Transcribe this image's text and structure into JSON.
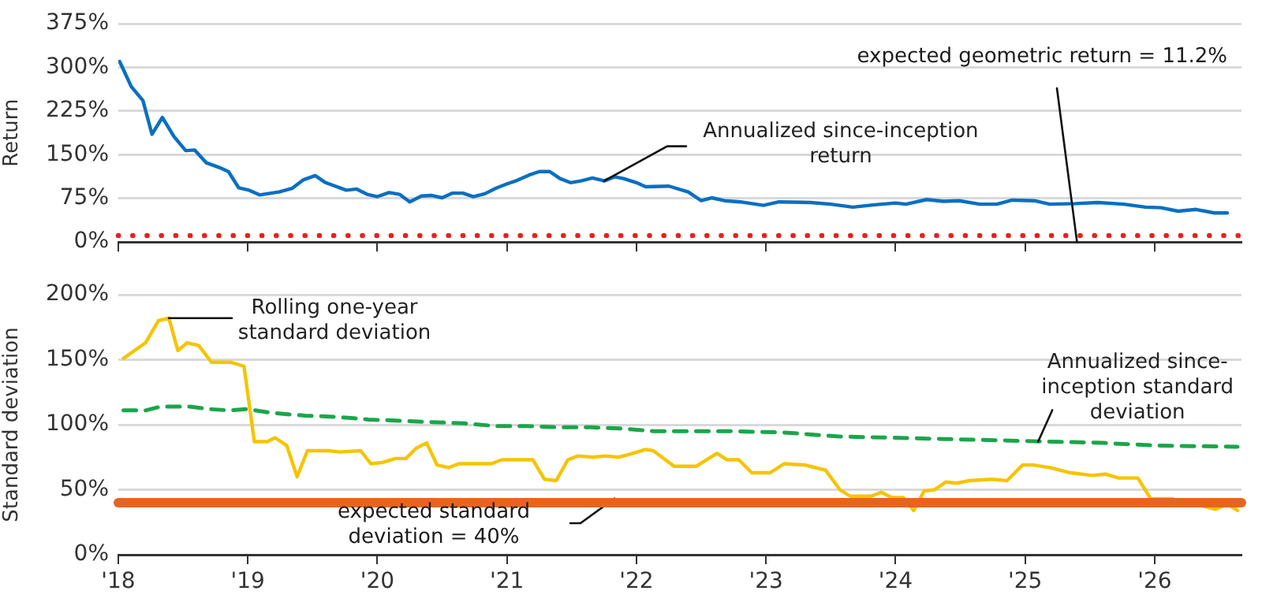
{
  "chart_data": [
    {
      "type": "line",
      "ylabel": "Return",
      "xlim": [
        2018,
        2026.67
      ],
      "xticks": [
        {
          "value": 2018,
          "label": null
        },
        {
          "value": 2019,
          "label": null
        },
        {
          "value": 2020,
          "label": null
        },
        {
          "value": 2021,
          "label": null
        },
        {
          "value": 2022,
          "label": null
        },
        {
          "value": 2023,
          "label": null
        },
        {
          "value": 2024,
          "label": null
        },
        {
          "value": 2025,
          "label": null
        },
        {
          "value": 2026,
          "label": null
        }
      ],
      "ylim": [
        0,
        375
      ],
      "yticks": [
        {
          "value": 0,
          "label": "0%"
        },
        {
          "value": 75,
          "label": "75%"
        },
        {
          "value": 150,
          "label": "150%"
        },
        {
          "value": 225,
          "label": "225%"
        },
        {
          "value": 300,
          "label": "300%"
        },
        {
          "value": 375,
          "label": "375%"
        }
      ],
      "tick_labels": "y",
      "grid": "y",
      "legend": false,
      "marker": "none",
      "series": [
        {
          "color": "#0a6fc2",
          "line_style": "solid",
          "x": [
            2018.01,
            2018.1,
            2018.19,
            2018.26,
            2018.34,
            2018.43,
            2018.52,
            2018.59,
            2018.68,
            2018.78,
            2018.85,
            2018.93,
            2019.01,
            2019.09,
            2019.24,
            2019.34,
            2019.43,
            2019.52,
            2019.6,
            2019.76,
            2019.84,
            2019.92,
            2020.0,
            2020.09,
            2020.17,
            2020.25,
            2020.34,
            2020.42,
            2020.5,
            2020.58,
            2020.66,
            2020.74,
            2020.83,
            2020.91,
            2020.99,
            2021.08,
            2021.17,
            2021.25,
            2021.33,
            2021.41,
            2021.49,
            2021.57,
            2021.66,
            2021.75,
            2021.83,
            2021.9,
            2022.0,
            2022.07,
            2022.25,
            2022.4,
            2022.5,
            2022.58,
            2022.68,
            2022.8,
            2022.98,
            2023.1,
            2023.34,
            2023.5,
            2023.67,
            2023.84,
            2024.0,
            2024.08,
            2024.24,
            2024.37,
            2024.49,
            2024.65,
            2024.78,
            2024.9,
            2025.07,
            2025.19,
            2025.39,
            2025.56,
            2025.76,
            2025.93,
            2026.05,
            2026.18,
            2026.32,
            2026.46,
            2026.56
          ],
          "values": [
            310,
            267,
            243,
            185,
            214,
            181,
            157,
            158,
            136,
            128,
            121,
            93,
            89,
            81,
            86,
            92,
            107,
            114,
            102,
            89,
            91,
            82,
            78,
            85,
            82,
            69,
            79,
            80,
            76,
            84,
            84,
            78,
            83,
            92,
            99,
            106,
            115,
            121,
            121,
            109,
            102,
            105,
            110,
            105,
            112,
            109,
            102,
            95,
            96,
            86,
            71,
            76,
            71,
            69,
            63,
            69,
            68,
            65,
            60,
            64,
            67,
            65,
            73,
            70,
            71,
            65,
            65,
            72,
            71,
            65,
            66,
            68,
            65,
            60,
            59,
            53,
            56,
            50,
            50
          ]
        }
      ],
      "ref_lines": [
        {
          "axis": "y",
          "value": 11.2,
          "label": "expected geometric return = 11.2%",
          "color": "#e8201e",
          "line_style": "dotted"
        }
      ],
      "annotations": [
        {
          "text": "Annualized since-inception return",
          "x": 2021.75,
          "y": 105
        }
      ]
    },
    {
      "type": "line",
      "ylabel": "Standard deviation",
      "xlim": [
        2018,
        2026.67
      ],
      "xticks": [
        {
          "value": 2018,
          "label": "'18"
        },
        {
          "value": 2019,
          "label": "'19"
        },
        {
          "value": 2020,
          "label": "'20"
        },
        {
          "value": 2021,
          "label": "'21"
        },
        {
          "value": 2022,
          "label": "'22"
        },
        {
          "value": 2023,
          "label": "'23"
        },
        {
          "value": 2024,
          "label": "'24"
        },
        {
          "value": 2025,
          "label": "'25"
        },
        {
          "value": 2026,
          "label": "'26"
        }
      ],
      "ylim": [
        0,
        200
      ],
      "yticks": [
        {
          "value": 0,
          "label": "0%"
        },
        {
          "value": 50,
          "label": "50%"
        },
        {
          "value": 100,
          "label": "100%"
        },
        {
          "value": 150,
          "label": "150%"
        },
        {
          "value": 200,
          "label": "200%"
        }
      ],
      "grid": "y",
      "legend": false,
      "marker": "none",
      "series": [
        {
          "color": "#f5c400",
          "line_style": "solid",
          "x": [
            2018.04,
            2018.21,
            2018.31,
            2018.39,
            2018.46,
            2018.53,
            2018.62,
            2018.72,
            2018.87,
            2018.97,
            2019.05,
            2019.15,
            2019.21,
            2019.3,
            2019.38,
            2019.46,
            2019.54,
            2019.62,
            2019.71,
            2019.87,
            2019.95,
            2020.04,
            2020.14,
            2020.22,
            2020.3,
            2020.38,
            2020.46,
            2020.55,
            2020.63,
            2020.88,
            2020.96,
            2021.2,
            2021.29,
            2021.38,
            2021.47,
            2021.55,
            2021.66,
            2021.76,
            2021.86,
            2021.94,
            2022.07,
            2022.13,
            2022.29,
            2022.46,
            2022.62,
            2022.7,
            2022.79,
            2022.89,
            2023.03,
            2023.14,
            2023.3,
            2023.46,
            2023.57,
            2023.65,
            2023.81,
            2023.89,
            2023.97,
            2024.06,
            2024.14,
            2024.22,
            2024.3,
            2024.39,
            2024.47,
            2024.57,
            2024.74,
            2024.86,
            2024.98,
            2025.06,
            2025.19,
            2025.35,
            2025.52,
            2025.62,
            2025.72,
            2025.87,
            2025.97,
            2026.14,
            2026.22,
            2026.35,
            2026.47,
            2026.56,
            2026.64
          ],
          "values": [
            151,
            163,
            180,
            182,
            157,
            163,
            161,
            148,
            148,
            145,
            87,
            87,
            90,
            84,
            60,
            80,
            80,
            80,
            79,
            80,
            70,
            71,
            74,
            74,
            82,
            86,
            69,
            67,
            70,
            70,
            73,
            73,
            58,
            57,
            73,
            76,
            75,
            76,
            75,
            77,
            81,
            80,
            68,
            68,
            78,
            73,
            73,
            63,
            63,
            70,
            69,
            65,
            50,
            45,
            45,
            48,
            44,
            44,
            34,
            49,
            50,
            56,
            55,
            57,
            58,
            57,
            69,
            69,
            67,
            63,
            61,
            62,
            59,
            59,
            43,
            43,
            38,
            38,
            35,
            39,
            34
          ]
        },
        {
          "color": "#1aa64a",
          "line_style": "dashed",
          "x": [
            2018.04,
            2018.21,
            2018.33,
            2018.55,
            2018.7,
            2018.86,
            2018.99,
            2019.19,
            2019.44,
            2019.69,
            2019.93,
            2020.18,
            2020.42,
            2020.67,
            2020.91,
            2021.16,
            2021.4,
            2021.65,
            2021.9,
            2022.13,
            2022.72,
            2023.14,
            2023.55,
            2023.97,
            2024.38,
            2024.78,
            2025.19,
            2025.6,
            2026.01,
            2026.64
          ],
          "values": [
            111,
            111,
            114,
            114,
            112,
            111,
            112,
            109,
            107,
            106,
            104,
            103,
            102,
            101,
            99,
            99,
            98,
            98,
            97,
            95,
            95,
            94,
            91,
            90,
            89,
            88,
            87,
            86,
            84,
            83
          ]
        }
      ],
      "ref_lines": [
        {
          "axis": "y",
          "value": 40,
          "label": "expected standard deviation = 40%",
          "color": "#e8641e",
          "line_style": "solid"
        }
      ],
      "annotations": [
        {
          "text": "Rolling one-year standard deviation",
          "x": 2018.39,
          "y": 182
        },
        {
          "text": "Annualized since-inception standard deviation",
          "x": 2025.1,
          "y": 87
        }
      ]
    }
  ]
}
